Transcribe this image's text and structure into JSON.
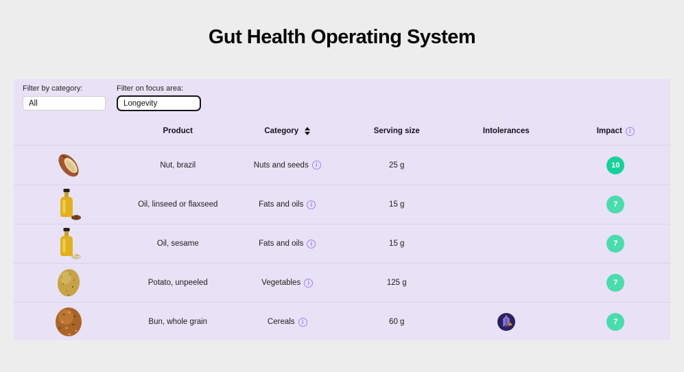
{
  "page": {
    "title": "Gut Health Operating System",
    "background": "#ededed",
    "panel_background": "#e9e2f6"
  },
  "filters": {
    "category": {
      "label": "Filter by category:",
      "value": "All"
    },
    "focus_area": {
      "label": "Filter on focus area:",
      "value": "Longevity",
      "focused": true
    }
  },
  "table": {
    "columns": {
      "image": "",
      "product": "Product",
      "category": "Category",
      "serving": "Serving size",
      "intolerances": "Intolerances",
      "impact": "Impact"
    },
    "icons": {
      "category_sort": "sort-updown-arrows",
      "impact_info": "circled-i",
      "category_info": "circled-i",
      "gluten": "wheat-warning-badge"
    },
    "rows": [
      {
        "image": "brazil-nut",
        "product": "Nut, brazil",
        "category": "Nuts and seeds",
        "serving": "25 g",
        "intolerances": [],
        "impact": "10",
        "impact_color": "#16d09a"
      },
      {
        "image": "oil-bottle-flaxseed",
        "product": "Oil, linseed or flaxseed",
        "category": "Fats and oils",
        "serving": "15 g",
        "intolerances": [],
        "impact": "7",
        "impact_color": "#4adcab"
      },
      {
        "image": "oil-bottle-sesame",
        "product": "Oil, sesame",
        "category": "Fats and oils",
        "serving": "15 g",
        "intolerances": [],
        "impact": "7",
        "impact_color": "#4adcab"
      },
      {
        "image": "potato",
        "product": "Potato, unpeeled",
        "category": "Vegetables",
        "serving": "125 g",
        "intolerances": [],
        "impact": "7",
        "impact_color": "#4adcab"
      },
      {
        "image": "whole-grain-bun",
        "product": "Bun, whole grain",
        "category": "Cereals",
        "serving": "60 g",
        "intolerances": [
          "gluten"
        ],
        "impact": "7",
        "impact_color": "#4adcab"
      }
    ],
    "colors": {
      "divider": "#d8d3e4",
      "info_icon": "#9b80ef",
      "gluten_circle": "#2b2160",
      "gluten_wheat": "#8d7bdc",
      "gluten_warning": "#e8a83e"
    }
  }
}
